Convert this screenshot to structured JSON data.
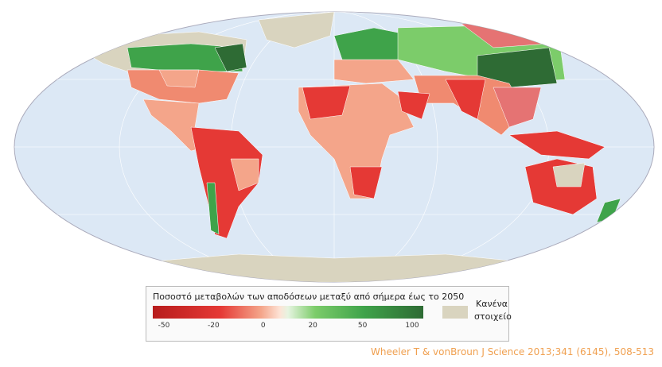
{
  "legend": {
    "title": "Ποσοστό μεταβολών των αποδόσεων μεταξύ από σήμερα έως το 2050",
    "ticks": [
      -50,
      -20,
      0,
      20,
      50,
      100
    ],
    "no_data": "Κανένα στοιχείο"
  },
  "citation": "Wheeler T & vonBroun J  Science 2013;341 (6145), 508-513"
}
